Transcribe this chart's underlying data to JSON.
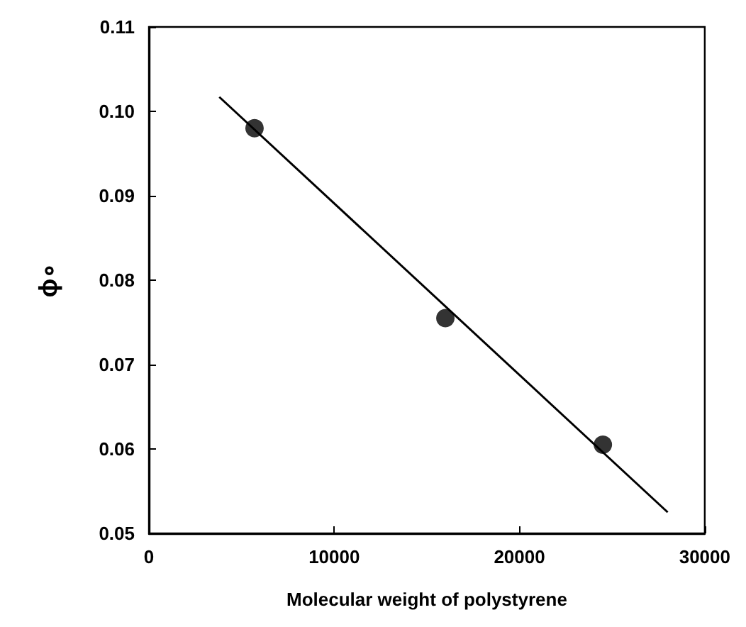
{
  "chart_data": {
    "type": "scatter",
    "xlabel": "Molecular weight of polystyrene",
    "ylabel": "ϕ∘",
    "xlim": [
      0,
      30000
    ],
    "xticks": [
      0,
      10000,
      20000,
      30000
    ],
    "ylim": [
      0.05,
      0.11
    ],
    "yticks": [
      {
        "value": 0.05,
        "label": "0.05"
      },
      {
        "value": 0.06,
        "label": "0.06"
      },
      {
        "value": 0.07,
        "label": "0.07"
      },
      {
        "value": 0.08,
        "label": "0.08"
      },
      {
        "value": 0.09,
        "label": "0.09"
      },
      {
        "value": 0.1,
        "label": "0.10"
      },
      {
        "value": 0.11,
        "label": "0.11"
      }
    ],
    "marker": "circle",
    "series": [
      {
        "color": "#000000",
        "x": [
          5700,
          16000,
          24500
        ],
        "values": [
          0.098,
          0.0755,
          0.0605
        ]
      },
      {
        "type": "line",
        "color": "#000000",
        "x": [
          3800,
          28000
        ],
        "values": [
          0.1017,
          0.0525
        ],
        "marker": "none",
        "line_style": "solid"
      }
    ]
  }
}
